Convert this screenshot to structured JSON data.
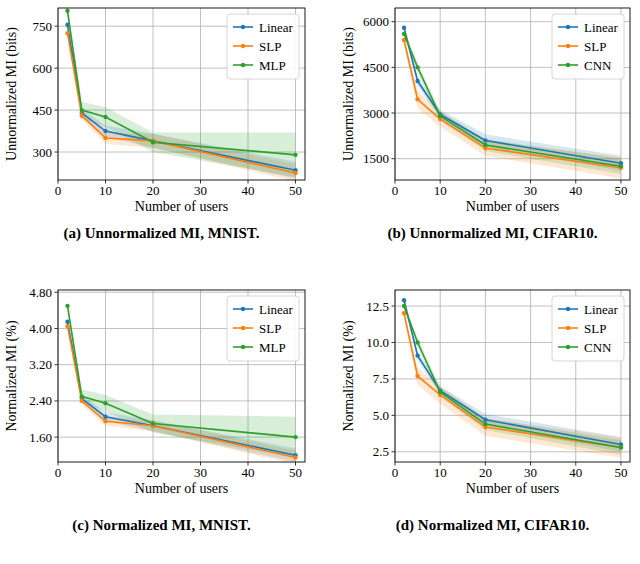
{
  "chart_data": [
    {
      "type": "line",
      "title": "(a) Unnormalized MI, MNIST.",
      "x_label": "Number of users",
      "y_label": "Unnormalized MI (bits)",
      "x": [
        2,
        5,
        10,
        20,
        50
      ],
      "xlim": [
        0,
        52
      ],
      "xticks": [
        0,
        10,
        20,
        30,
        40,
        50
      ],
      "ylim": [
        200,
        815
      ],
      "yticks": [
        300,
        450,
        600,
        750
      ],
      "grid": true,
      "legend": "upper right",
      "marker": "circle",
      "line_style": "solid",
      "series": [
        {
          "name": "Linear",
          "color": "#1f77b4",
          "values": [
            755,
            440,
            375,
            340,
            235
          ],
          "error": [
            15,
            15,
            20,
            25,
            30
          ]
        },
        {
          "name": "SLP",
          "color": "#ff7f0e",
          "values": [
            725,
            430,
            350,
            340,
            225
          ],
          "error": [
            15,
            15,
            20,
            25,
            30
          ]
        },
        {
          "name": "MLP",
          "color": "#2ca02c",
          "values": [
            805,
            450,
            425,
            335,
            290
          ],
          "error": [
            15,
            30,
            35,
            35,
            80
          ]
        }
      ]
    },
    {
      "type": "line",
      "title": "(b) Unnormalized MI, CIFAR10.",
      "x_label": "Number of users",
      "y_label": "Unnormalized MI (bits)",
      "x": [
        2,
        5,
        10,
        20,
        50
      ],
      "xlim": [
        0,
        52
      ],
      "xticks": [
        0,
        10,
        20,
        30,
        40,
        50
      ],
      "ylim": [
        800,
        6450
      ],
      "yticks": [
        1500,
        3000,
        4500,
        6000
      ],
      "grid": true,
      "legend": "upper right",
      "marker": "circle",
      "line_style": "solid",
      "series": [
        {
          "name": "Linear",
          "color": "#1f77b4",
          "values": [
            5800,
            4050,
            2950,
            2100,
            1350
          ],
          "error": [
            100,
            150,
            150,
            200,
            250
          ]
        },
        {
          "name": "SLP",
          "color": "#ff7f0e",
          "values": [
            5400,
            3450,
            2800,
            1850,
            1200
          ],
          "error": [
            150,
            300,
            250,
            250,
            350
          ]
        },
        {
          "name": "CNN",
          "color": "#2ca02c",
          "values": [
            5600,
            4500,
            2900,
            1950,
            1250
          ],
          "error": [
            100,
            150,
            150,
            200,
            250
          ]
        }
      ]
    },
    {
      "type": "line",
      "title": "(c) Normalized MI, MNIST.",
      "x_label": "Number of users",
      "y_label": "Normalized MI (%)",
      "x": [
        2,
        5,
        10,
        20,
        50
      ],
      "xlim": [
        0,
        52
      ],
      "xticks": [
        0,
        10,
        20,
        30,
        40,
        50
      ],
      "ylim": [
        1.05,
        4.85
      ],
      "yticks": [
        {
          "value": 1.6,
          "label": "1.60"
        },
        {
          "value": 2.4,
          "label": "2.40"
        },
        {
          "value": 3.2,
          "label": "3.20"
        },
        {
          "value": 4.0,
          "label": "4.00"
        },
        {
          "value": 4.8,
          "label": "4.80"
        }
      ],
      "grid": true,
      "legend": "upper right",
      "marker": "circle",
      "line_style": "solid",
      "series": [
        {
          "name": "Linear",
          "color": "#1f77b4",
          "values": [
            4.15,
            2.45,
            2.05,
            1.85,
            1.2
          ],
          "error": [
            0.08,
            0.08,
            0.1,
            0.12,
            0.15
          ]
        },
        {
          "name": "SLP",
          "color": "#ff7f0e",
          "values": [
            4.05,
            2.4,
            1.95,
            1.85,
            1.15
          ],
          "error": [
            0.08,
            0.08,
            0.1,
            0.12,
            0.15
          ]
        },
        {
          "name": "MLP",
          "color": "#2ca02c",
          "values": [
            4.5,
            2.5,
            2.35,
            1.9,
            1.6
          ],
          "error": [
            0.08,
            0.15,
            0.18,
            0.2,
            0.45
          ]
        }
      ]
    },
    {
      "type": "line",
      "title": "(d) Normalized MI, CIFAR10.",
      "x_label": "Number of users",
      "y_label": "Normalized MI (%)",
      "x": [
        2,
        5,
        10,
        20,
        50
      ],
      "xlim": [
        0,
        52
      ],
      "xticks": [
        0,
        10,
        20,
        30,
        40,
        50
      ],
      "ylim": [
        1.8,
        13.6
      ],
      "yticks": [
        {
          "value": 2.5,
          "label": "2.5"
        },
        {
          "value": 5,
          "label": "5.0"
        },
        {
          "value": 7.5,
          "label": "7.5"
        },
        {
          "value": 10,
          "label": "10.0"
        },
        {
          "value": 12.5,
          "label": "12.5"
        }
      ],
      "grid": true,
      "legend": "upper right",
      "marker": "circle",
      "line_style": "solid",
      "series": [
        {
          "name": "Linear",
          "color": "#1f77b4",
          "values": [
            12.9,
            9.1,
            6.7,
            4.7,
            3.0
          ],
          "error": [
            0.2,
            0.3,
            0.3,
            0.4,
            0.5
          ]
        },
        {
          "name": "SLP",
          "color": "#ff7f0e",
          "values": [
            12.0,
            7.7,
            6.4,
            4.2,
            2.8
          ],
          "error": [
            0.3,
            0.6,
            0.6,
            0.6,
            0.7
          ]
        },
        {
          "name": "CNN",
          "color": "#2ca02c",
          "values": [
            12.5,
            10.0,
            6.6,
            4.4,
            2.8
          ],
          "error": [
            0.2,
            0.3,
            0.3,
            0.4,
            0.5
          ]
        }
      ]
    }
  ]
}
